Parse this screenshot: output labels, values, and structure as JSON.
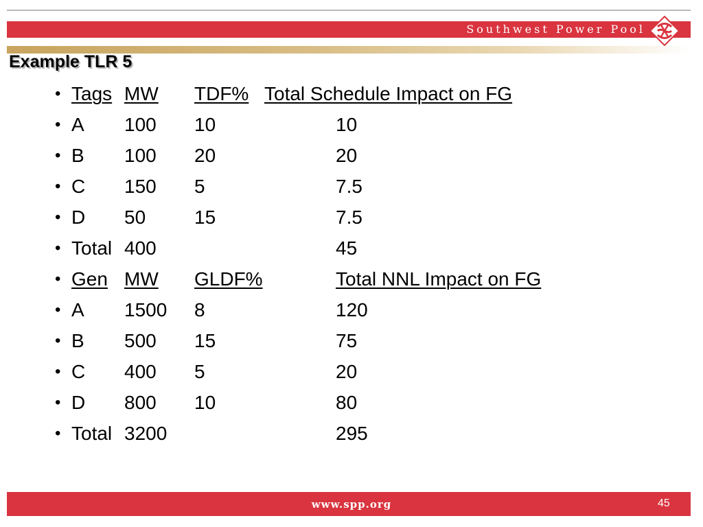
{
  "header": {
    "brand": "Southwest Power Pool",
    "colors": {
      "band": "#d9343f",
      "gold": "#c8a45e"
    },
    "logo_icon": "spp-knot-logo"
  },
  "slide": {
    "title": "Example TLR 5",
    "rows": [
      [
        "Tags",
        "MW",
        "TDF%",
        "Total Schedule Impact on FG"
      ],
      [
        "A",
        "100",
        "10",
        "10"
      ],
      [
        "B",
        "100",
        "20",
        "20"
      ],
      [
        "C",
        "150",
        "5",
        "7.5"
      ],
      [
        "D",
        "50",
        "15",
        "7.5"
      ],
      [
        "Total",
        "400",
        "",
        "45"
      ],
      [
        "Gen",
        "MW",
        "GLDF%",
        "Total NNL Impact on FG"
      ],
      [
        "A",
        "1500",
        "8",
        "120"
      ],
      [
        "B",
        "500",
        "15",
        "75"
      ],
      [
        "C",
        "400",
        "5",
        "20"
      ],
      [
        "D",
        "800",
        "10",
        "80"
      ],
      [
        "Total",
        "3200",
        "",
        "295"
      ]
    ]
  },
  "footer": {
    "url": "www.spp.org",
    "page_number": "45"
  }
}
